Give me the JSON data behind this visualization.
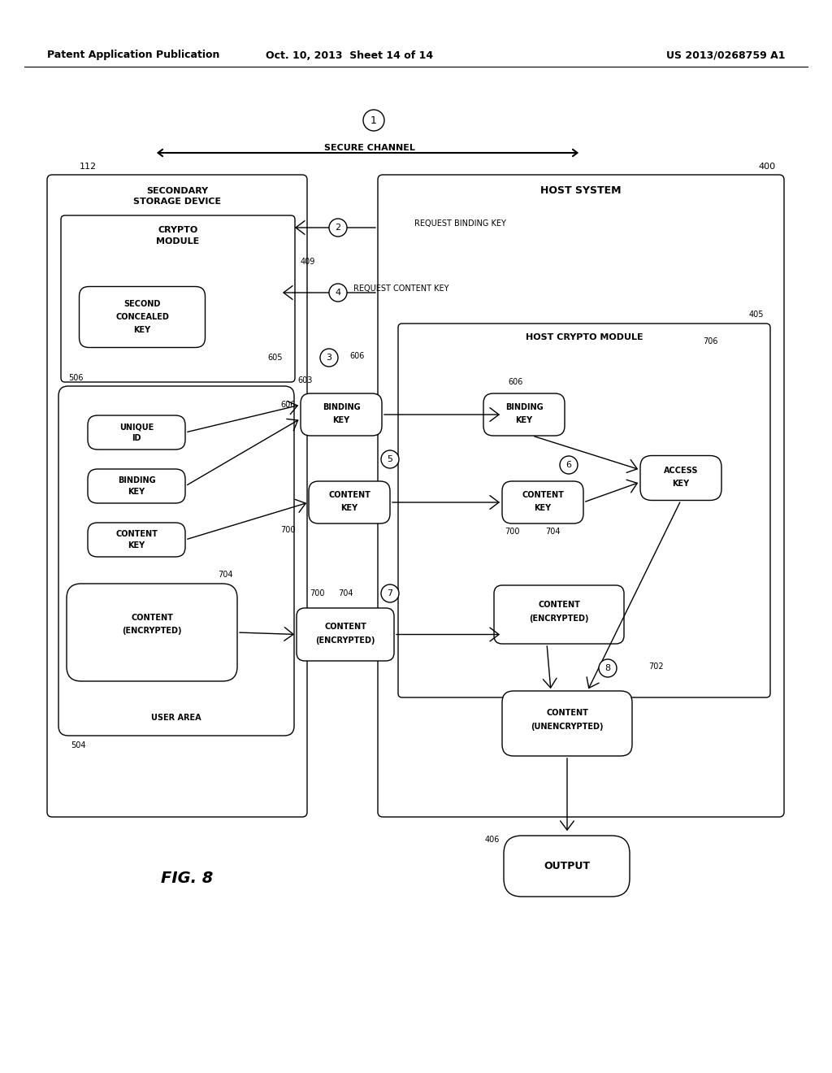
{
  "header_left": "Patent Application Publication",
  "header_mid": "Oct. 10, 2013  Sheet 14 of 14",
  "header_right": "US 2013/0268759 A1",
  "fig_label": "FIG. 8",
  "background": "#ffffff"
}
